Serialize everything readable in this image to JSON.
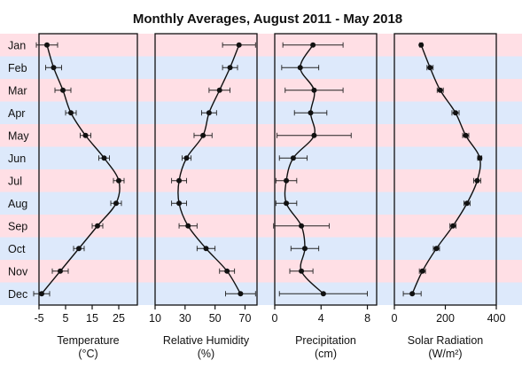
{
  "chart_data": {
    "type": "line",
    "title": "Monthly Averages, August 2011 - May 2018",
    "months": [
      "Jan",
      "Feb",
      "Mar",
      "Apr",
      "May",
      "Jun",
      "Jul",
      "Aug",
      "Sep",
      "Oct",
      "Nov",
      "Dec"
    ],
    "band_colors": {
      "odd": "#ffdfe5",
      "even": "#dde9fb"
    },
    "panels": [
      {
        "xlabel": "Temperature",
        "unit": "(°C)",
        "xlim": [
          -5,
          32
        ],
        "ticks": [
          -5,
          5,
          15,
          25
        ],
        "values": [
          -2,
          0.5,
          4,
          7,
          12.5,
          19.5,
          25,
          24,
          17,
          10,
          3,
          -4
        ],
        "err": [
          4,
          3,
          3,
          2,
          2,
          2,
          2,
          2,
          2,
          2,
          3,
          3
        ]
      },
      {
        "xlabel": "Relative Humidity",
        "unit": "(%)",
        "xlim": [
          10,
          78
        ],
        "ticks": [
          10,
          30,
          50,
          70
        ],
        "values": [
          66,
          60,
          53,
          46,
          42,
          31,
          26,
          26,
          32,
          44,
          58,
          67
        ],
        "err": [
          11,
          5,
          7,
          5,
          6,
          3,
          5,
          5,
          6,
          6,
          5,
          10
        ]
      },
      {
        "xlabel": "Precipitation",
        "unit": "(cm)",
        "xlim": [
          0,
          8.8
        ],
        "ticks": [
          0,
          4,
          8
        ],
        "values": [
          3.3,
          2.2,
          3.4,
          3.1,
          3.4,
          1.6,
          1.0,
          1.0,
          2.3,
          2.6,
          2.3,
          4.2
        ],
        "err": [
          2.6,
          1.6,
          2.5,
          1.4,
          3.2,
          1.2,
          0.9,
          0.9,
          2.4,
          1.2,
          1.0,
          3.8
        ]
      },
      {
        "xlabel": "Solar Radiation",
        "unit": "(W/m²)",
        "xlim": [
          0,
          400
        ],
        "ticks": [
          0,
          200,
          400
        ],
        "values": [
          105,
          140,
          180,
          240,
          280,
          335,
          325,
          285,
          230,
          165,
          110,
          70
        ],
        "err": [
          5,
          12,
          12,
          14,
          12,
          8,
          14,
          12,
          12,
          12,
          12,
          35
        ]
      }
    ]
  }
}
